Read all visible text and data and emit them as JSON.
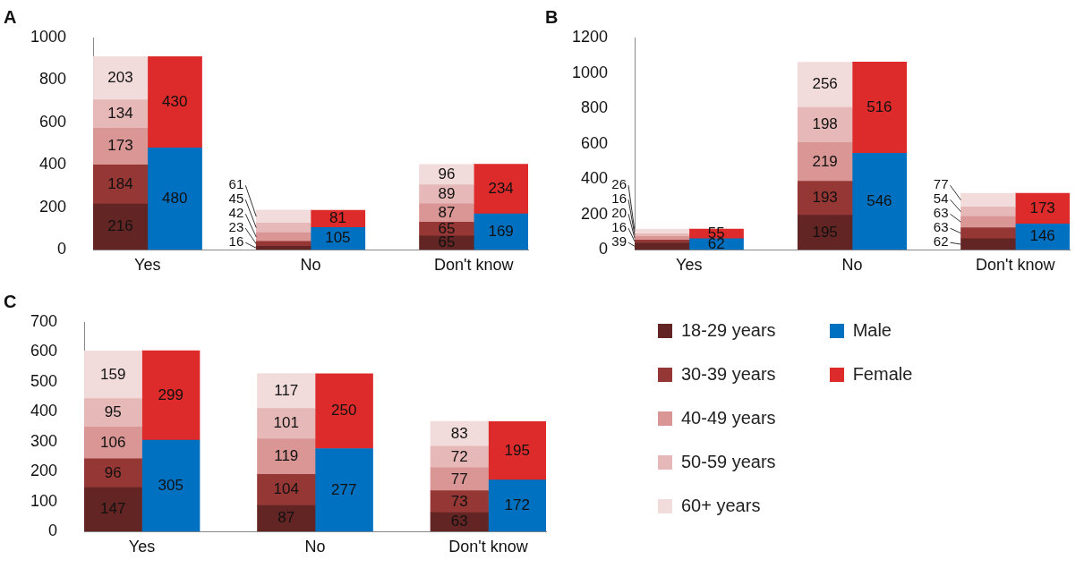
{
  "chart_data": [
    {
      "type": "bar",
      "title": "A",
      "categories": [
        "Yes",
        null,
        null,
        "No",
        null,
        null,
        "Don't know",
        null
      ],
      "stacked": true,
      "data_labels": true,
      "grid": false,
      "ylim": [
        0,
        1000
      ],
      "yticks": [
        0,
        200,
        400,
        600,
        800,
        1000
      ],
      "series": [
        {
          "color": "#632523",
          "values": [
            216,
            null,
            null,
            16,
            null,
            null,
            65,
            null
          ]
        },
        {
          "color": "#953735",
          "values": [
            184,
            null,
            null,
            23,
            null,
            null,
            65,
            null
          ]
        },
        {
          "color": "#d99694",
          "values": [
            173,
            null,
            null,
            42,
            null,
            null,
            87,
            null
          ]
        },
        {
          "color": "#e6b9b8",
          "values": [
            134,
            null,
            null,
            45,
            null,
            null,
            89,
            null
          ]
        },
        {
          "color": "#f2dcdb",
          "values": [
            203,
            null,
            null,
            61,
            null,
            null,
            96,
            null
          ]
        },
        {
          "color": "#0070c0",
          "values": [
            null,
            480,
            null,
            null,
            105,
            null,
            null,
            169
          ]
        },
        {
          "color": "#dd2a2a",
          "values": [
            null,
            430,
            null,
            null,
            81,
            null,
            null,
            234
          ]
        }
      ]
    },
    {
      "type": "bar",
      "title": "B",
      "categories": [
        "Yes",
        null,
        null,
        "No",
        null,
        null,
        "Don't know",
        null
      ],
      "stacked": true,
      "data_labels": true,
      "grid": false,
      "ylim": [
        0,
        1200
      ],
      "yticks": [
        0,
        200,
        400,
        600,
        800,
        1000,
        1200
      ],
      "series": [
        {
          "color": "#632523",
          "values": [
            39,
            null,
            null,
            195,
            null,
            null,
            62,
            null
          ]
        },
        {
          "color": "#953735",
          "values": [
            16,
            null,
            null,
            193,
            null,
            null,
            63,
            null
          ]
        },
        {
          "color": "#d99694",
          "values": [
            20,
            null,
            null,
            219,
            null,
            null,
            63,
            null
          ]
        },
        {
          "color": "#e6b9b8",
          "values": [
            16,
            null,
            null,
            198,
            null,
            null,
            54,
            null
          ]
        },
        {
          "color": "#f2dcdb",
          "values": [
            26,
            null,
            null,
            256,
            null,
            null,
            77,
            null
          ]
        },
        {
          "color": "#0070c0",
          "values": [
            null,
            62,
            null,
            null,
            546,
            null,
            null,
            146
          ]
        },
        {
          "color": "#dd2a2a",
          "values": [
            null,
            55,
            null,
            null,
            516,
            null,
            null,
            173
          ]
        }
      ]
    },
    {
      "type": "bar",
      "title": "C",
      "categories": [
        "Yes",
        null,
        null,
        "No",
        null,
        null,
        "Don't know",
        null
      ],
      "stacked": true,
      "data_labels": true,
      "grid": false,
      "legend": "right",
      "ylim": [
        0,
        700
      ],
      "yticks": [
        0,
        100,
        200,
        300,
        400,
        500,
        600,
        700
      ],
      "series": [
        {
          "name": "18-29 years",
          "color": "#632523",
          "values": [
            147,
            null,
            null,
            87,
            null,
            null,
            63,
            null
          ]
        },
        {
          "name": "30-39 years",
          "color": "#953735",
          "values": [
            96,
            null,
            null,
            104,
            null,
            null,
            73,
            null
          ]
        },
        {
          "name": "40-49 years",
          "color": "#d99694",
          "values": [
            106,
            null,
            null,
            119,
            null,
            null,
            77,
            null
          ]
        },
        {
          "name": "50-59 years",
          "color": "#e6b9b8",
          "values": [
            95,
            null,
            null,
            101,
            null,
            null,
            72,
            null
          ]
        },
        {
          "name": "60+ years",
          "color": "#f2dcdb",
          "values": [
            159,
            null,
            null,
            117,
            null,
            null,
            83,
            null
          ]
        },
        {
          "name": "Male",
          "color": "#0070c0",
          "values": [
            null,
            305,
            null,
            null,
            277,
            null,
            null,
            172
          ]
        },
        {
          "name": "Female",
          "color": "#dd2a2a",
          "values": [
            null,
            299,
            null,
            null,
            250,
            null,
            null,
            195
          ]
        }
      ]
    }
  ]
}
